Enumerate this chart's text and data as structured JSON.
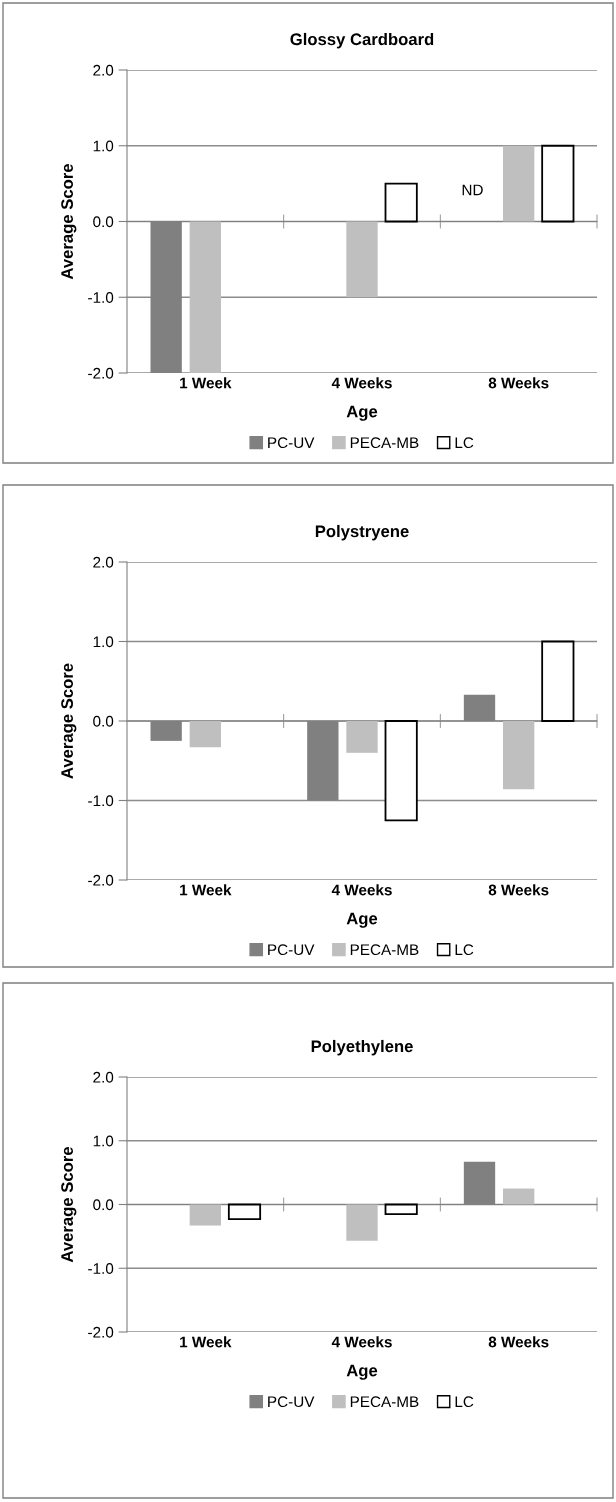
{
  "chart_data": [
    {
      "type": "bar",
      "title": "Glossy Cardboard",
      "xlabel": "Age",
      "ylabel": "Average Score",
      "categories": [
        "1 Week",
        "4 Weeks",
        "8 Weeks"
      ],
      "series": [
        {
          "name": "PC-UV",
          "color": "#808080",
          "values": [
            -2.0,
            null,
            null
          ]
        },
        {
          "name": "PECA-MB",
          "color": "#bfbfbf",
          "values": [
            -2.0,
            -1.0,
            1.0
          ]
        },
        {
          "name": "LC",
          "color": "#ffffff",
          "values": [
            null,
            0.5,
            1.0
          ]
        }
      ],
      "ylim": [
        -2,
        2
      ],
      "yticks": [
        {
          "value": -2,
          "label": "-2.0"
        },
        {
          "value": -1,
          "label": "-1.0"
        },
        {
          "value": 0,
          "label": "0.0"
        },
        {
          "value": 1,
          "label": "1.0"
        },
        {
          "value": 2,
          "label": "2.0"
        }
      ],
      "grid": "y",
      "legend": "bottom",
      "annotations": [
        "ND"
      ]
    },
    {
      "type": "bar",
      "title": "Polystryene",
      "xlabel": "Age",
      "ylabel": "Average Score",
      "categories": [
        "1 Week",
        "4 Weeks",
        "8 Weeks"
      ],
      "series": [
        {
          "name": "PC-UV",
          "color": "#808080",
          "values": [
            -0.25,
            -1.0,
            0.33
          ]
        },
        {
          "name": "PECA-MB",
          "color": "#bfbfbf",
          "values": [
            -0.33,
            -0.4,
            -0.86
          ]
        },
        {
          "name": "LC",
          "color": "#ffffff",
          "values": [
            null,
            -1.25,
            1.0
          ]
        }
      ],
      "ylim": [
        -2,
        2
      ],
      "yticks": [
        {
          "value": -2,
          "label": "-2.0"
        },
        {
          "value": -1,
          "label": "-1.0"
        },
        {
          "value": 0,
          "label": "0.0"
        },
        {
          "value": 1,
          "label": "1.0"
        },
        {
          "value": 2,
          "label": "2.0"
        }
      ],
      "grid": "y",
      "legend": "bottom"
    },
    {
      "type": "bar",
      "title": "Polyethylene",
      "xlabel": "Age",
      "ylabel": "Average Score",
      "categories": [
        "1 Week",
        "4 Weeks",
        "8 Weeks"
      ],
      "series": [
        {
          "name": "PC-UV",
          "color": "#808080",
          "values": [
            null,
            null,
            0.67
          ]
        },
        {
          "name": "PECA-MB",
          "color": "#bfbfbf",
          "values": [
            -0.33,
            -0.57,
            0.25
          ]
        },
        {
          "name": "LC",
          "color": "#ffffff",
          "values": [
            -0.23,
            -0.15,
            null
          ]
        }
      ],
      "ylim": [
        -2,
        2
      ],
      "yticks": [
        {
          "value": -2,
          "label": "-2.0"
        },
        {
          "value": -1,
          "label": "-1.0"
        },
        {
          "value": 0,
          "label": "0.0"
        },
        {
          "value": 1,
          "label": "1.0"
        },
        {
          "value": 2,
          "label": "2.0"
        }
      ],
      "grid": "y",
      "legend": "bottom"
    }
  ]
}
